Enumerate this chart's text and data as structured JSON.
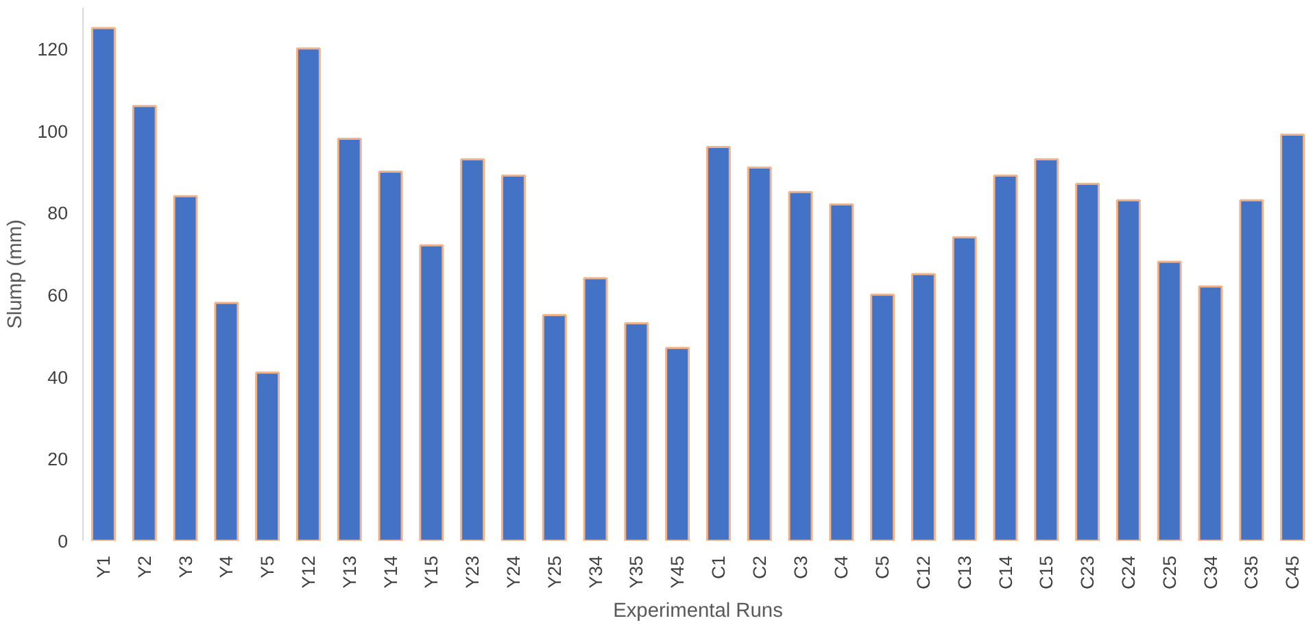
{
  "chart_data": {
    "type": "bar",
    "xlabel": "Experimental Runs",
    "ylabel": "Slump (mm)",
    "categories": [
      "Y1",
      "Y2",
      "Y3",
      "Y4",
      "Y5",
      "Y12",
      "Y13",
      "Y14",
      "Y15",
      "Y23",
      "Y24",
      "Y25",
      "Y34",
      "Y35",
      "Y45",
      "C1",
      "C2",
      "C3",
      "C4",
      "C5",
      "C12",
      "C13",
      "C14",
      "C15",
      "C23",
      "C24",
      "C25",
      "C34",
      "C35",
      "C45"
    ],
    "values": [
      125,
      106,
      84,
      58,
      41,
      120,
      98,
      90,
      72,
      93,
      89,
      55,
      64,
      53,
      47,
      96,
      91,
      85,
      82,
      60,
      65,
      74,
      89,
      93,
      87,
      83,
      68,
      62,
      83,
      99
    ],
    "color": "#4472c4",
    "ylim": [
      0,
      130
    ],
    "yticks": [
      0,
      20,
      40,
      60,
      80,
      100,
      120
    ],
    "grid": false
  }
}
